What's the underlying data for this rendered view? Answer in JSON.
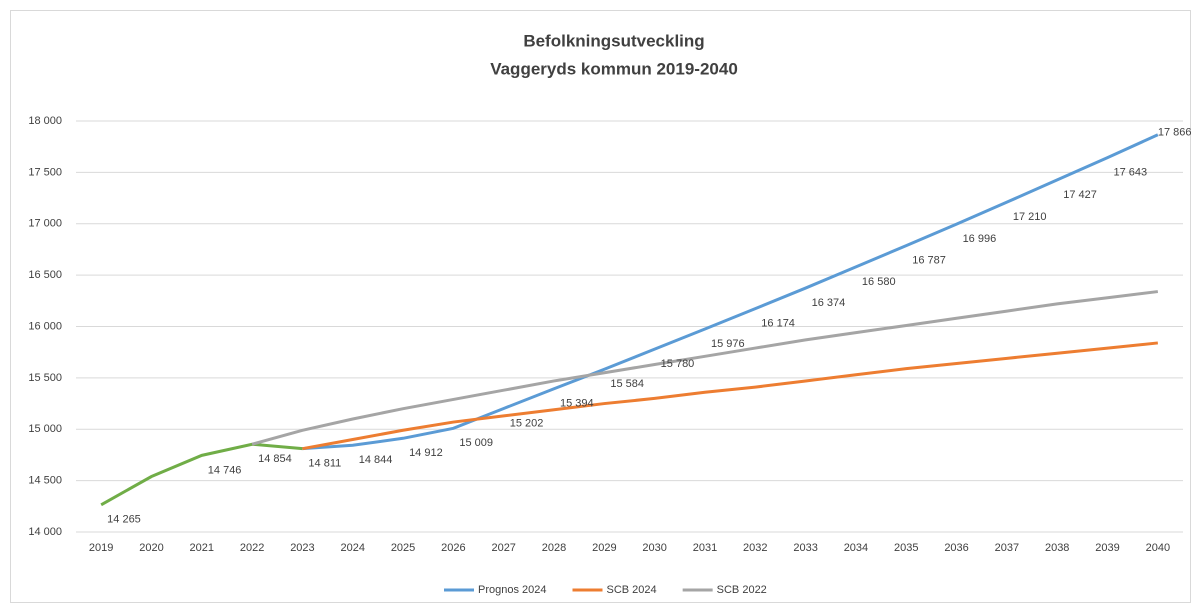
{
  "chart_data": {
    "type": "line",
    "title": "Befolkningsutveckling",
    "subtitle": "Vaggeryds kommun 2019-2040",
    "categories": [
      "2019",
      "2020",
      "2021",
      "2022",
      "2023",
      "2024",
      "2025",
      "2026",
      "2027",
      "2028",
      "2029",
      "2030",
      "2031",
      "2032",
      "2033",
      "2034",
      "2035",
      "2036",
      "2037",
      "2038",
      "2039",
      "2040"
    ],
    "series": [
      {
        "color": "#70ad47",
        "values": [
          14265,
          14540,
          14746,
          14854,
          14811,
          null,
          null,
          null,
          null,
          null,
          null,
          null,
          null,
          null,
          null,
          null,
          null,
          null,
          null,
          null,
          null,
          null
        ],
        "value_labels": [
          "14 265",
          null,
          "14 746",
          "14 854",
          "14 811",
          null,
          null,
          null,
          null,
          null,
          null,
          null,
          null,
          null,
          null,
          null,
          null,
          null,
          null,
          null,
          null,
          null
        ]
      },
      {
        "name": "Prognos 2024",
        "color": "#5b9bd5",
        "values": [
          null,
          null,
          null,
          null,
          14811,
          14844,
          14912,
          15009,
          15202,
          15394,
          15584,
          15780,
          15976,
          16174,
          16374,
          16580,
          16787,
          16996,
          17210,
          17427,
          17643,
          17866
        ],
        "value_labels": [
          null,
          null,
          null,
          null,
          null,
          "14 844",
          "14 912",
          "15 009",
          "15 202",
          "15 394",
          "15 584",
          "15 780",
          "15 976",
          "16 174",
          "16 374",
          "16 580",
          "16 787",
          "16 996",
          "17 210",
          "17 427",
          "17 643",
          "17 866"
        ]
      },
      {
        "name": "SCB 2024",
        "color": "#ed7d31",
        "values": [
          null,
          null,
          null,
          null,
          14811,
          14900,
          14990,
          15070,
          15130,
          15190,
          15250,
          15300,
          15360,
          15410,
          15470,
          15530,
          15590,
          15640,
          15690,
          15740,
          15790,
          15840
        ]
      },
      {
        "name": "SCB 2022",
        "color": "#a5a5a5",
        "values": [
          null,
          null,
          null,
          14854,
          14990,
          15100,
          15200,
          15290,
          15380,
          15470,
          15550,
          15630,
          15710,
          15790,
          15870,
          15940,
          16010,
          16080,
          16150,
          16220,
          16280,
          16340
        ]
      }
    ],
    "ylim": [
      14000,
      18000
    ],
    "yticks": [
      {
        "value": 14000,
        "label": "14 000"
      },
      {
        "value": 14500,
        "label": "14 500"
      },
      {
        "value": 15000,
        "label": "15 000"
      },
      {
        "value": 15500,
        "label": "15 500"
      },
      {
        "value": 16000,
        "label": "16 000"
      },
      {
        "value": 16500,
        "label": "16 500"
      },
      {
        "value": 17000,
        "label": "17 000"
      },
      {
        "value": 17500,
        "label": "17 500"
      },
      {
        "value": 18000,
        "label": "18 000"
      }
    ],
    "grid": true,
    "legend": "bottom"
  }
}
